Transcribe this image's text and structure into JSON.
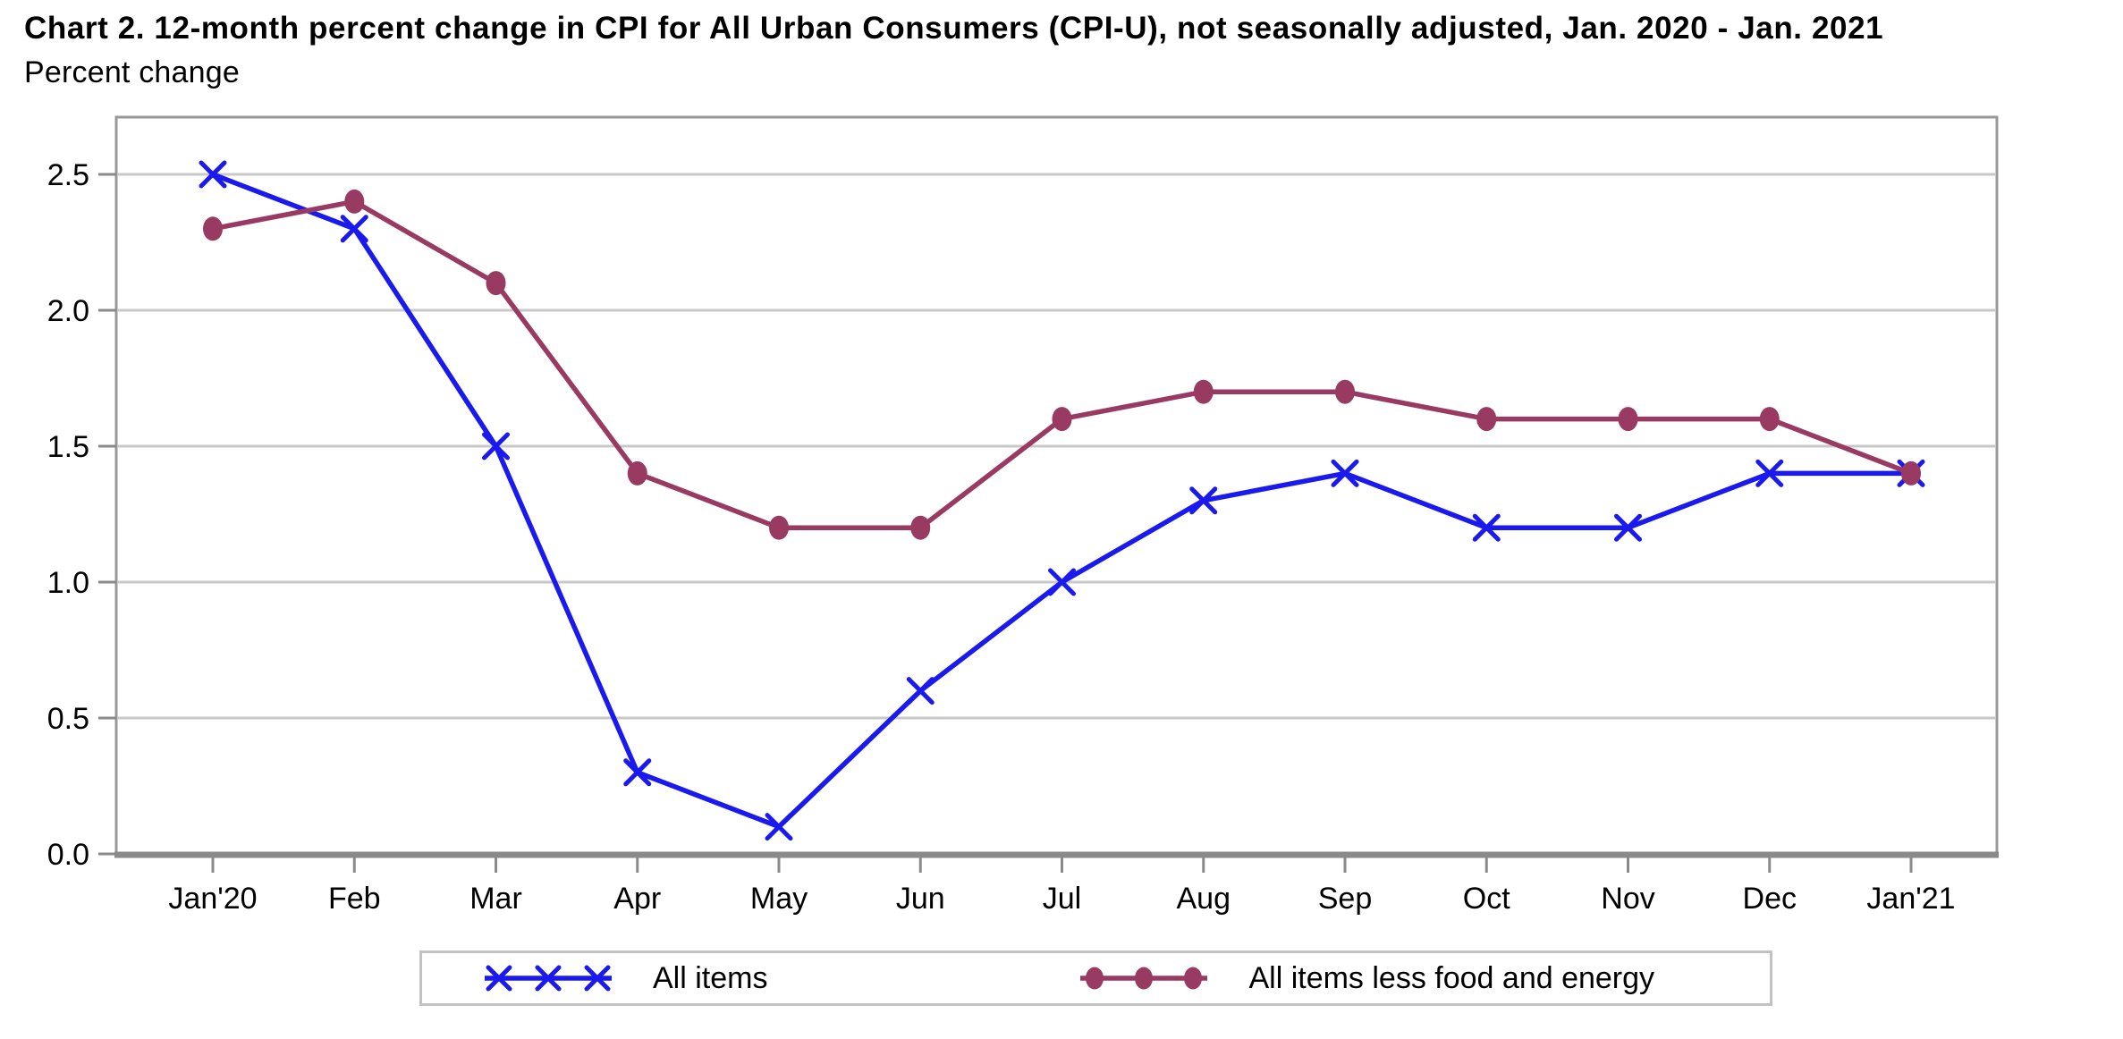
{
  "page": {
    "title": "Chart 2. 12-month percent change in CPI for All Urban Consumers (CPI-U), not seasonally adjusted, Jan. 2020 - Jan. 2021",
    "subtitle": "Percent change"
  },
  "chart_data": {
    "type": "line",
    "title": "Chart 2. 12-month percent change in CPI for All Urban Consumers (CPI-U), not seasonally adjusted, Jan. 2020 - Jan. 2021",
    "ylabel": "Percent change",
    "xlabel": "",
    "categories": [
      "Jan'20",
      "Feb",
      "Mar",
      "Apr",
      "May",
      "Jun",
      "Jul",
      "Aug",
      "Sep",
      "Oct",
      "Nov",
      "Dec",
      "Jan'21"
    ],
    "series": [
      {
        "name": "All items",
        "marker": "x",
        "color": "#1a1aef",
        "values": [
          2.5,
          2.3,
          1.5,
          0.3,
          0.1,
          0.6,
          1.0,
          1.3,
          1.4,
          1.2,
          1.2,
          1.4,
          1.4
        ]
      },
      {
        "name": "All items less food and energy",
        "marker": "dot",
        "color": "#993a63",
        "values": [
          2.3,
          2.4,
          2.1,
          1.4,
          1.2,
          1.2,
          1.6,
          1.7,
          1.7,
          1.6,
          1.6,
          1.6,
          1.4
        ]
      }
    ],
    "y_tick_labels": [
      "0.0",
      "0.5",
      "1.0",
      "1.5",
      "2.0",
      "2.5"
    ],
    "y_ticks": [
      0.0,
      0.5,
      1.0,
      1.5,
      2.0,
      2.5
    ],
    "ylim": [
      0.0,
      2.71
    ],
    "grid": "horizontal",
    "legend_position": "bottom",
    "style": {
      "gridline_color": "#c8c8c8",
      "border_color": "#999999",
      "axis_color": "#8a8a8a",
      "tick_color": "#8a8a8a",
      "text_color": "#000000"
    }
  }
}
